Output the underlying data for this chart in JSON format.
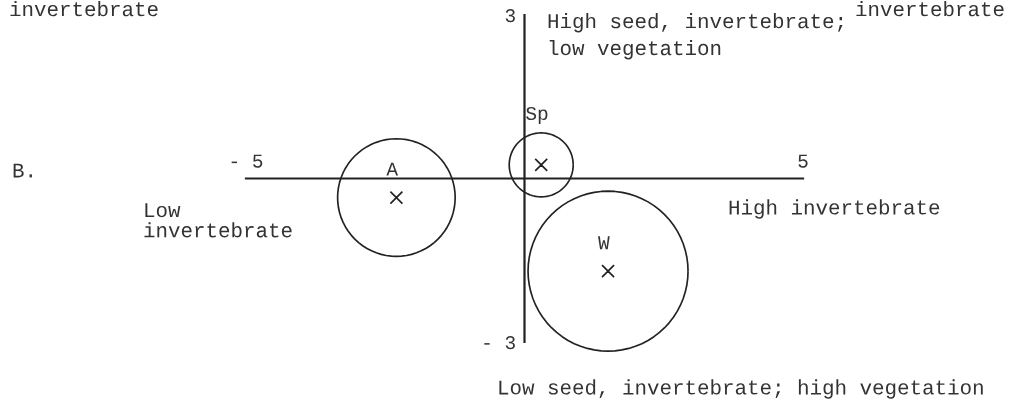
{
  "chart_data": {
    "type": "bubble",
    "xlim": [
      -5,
      5
    ],
    "ylim": [
      -3,
      3
    ],
    "xticks": [
      {
        "value": -5,
        "label": "- 5"
      },
      5
    ],
    "yticks": [
      {
        "value": -3,
        "label": "- 3"
      },
      3
    ],
    "xlabel": "High invertebrate",
    "ylabel": "High seed, invertebrate;\nlow vegetation",
    "series": [
      {
        "name": "A",
        "color": "#222222",
        "x": [
          -2.3
        ],
        "values": [
          -0.35
        ],
        "sizes": [
          0.54
        ]
      },
      {
        "name": "Sp",
        "color": "#222222",
        "x": [
          0.3
        ],
        "values": [
          0.25
        ],
        "sizes": [
          0.16
        ]
      },
      {
        "name": "W",
        "color": "#222222",
        "x": [
          1.5
        ],
        "values": [
          -1.7
        ],
        "sizes": [
          1
        ]
      }
    ],
    "annotations": [
      "B.",
      "Low\ninvertebrate",
      "Low seed, invertebrate; high vegetation",
      "invertebrate",
      "invertebrate"
    ]
  }
}
